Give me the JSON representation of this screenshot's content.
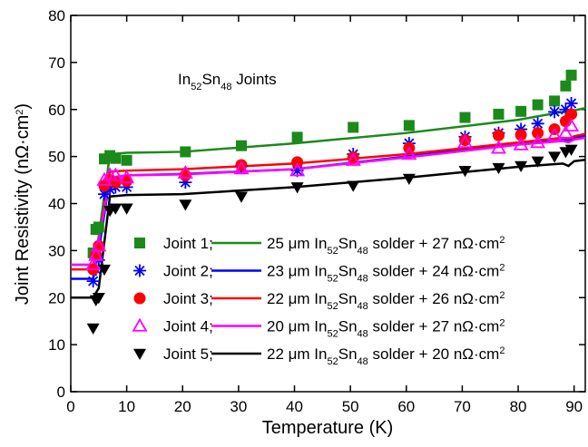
{
  "chart_data": {
    "type": "scatter",
    "x_label": "Temperature (K)",
    "y_label": [
      "Joint Resistivity (nΩ·cm",
      "2",
      ")"
    ],
    "annotation": [
      "In",
      "52",
      "Sn",
      "48",
      " Joints"
    ],
    "xlim": [
      0,
      92
    ],
    "xticks": [
      0,
      10,
      20,
      30,
      40,
      50,
      60,
      70,
      80,
      90
    ],
    "ylim": [
      0,
      80
    ],
    "yticks": [
      0,
      10,
      20,
      30,
      40,
      50,
      60,
      70,
      80
    ],
    "series": [
      {
        "name": "Joint 1;",
        "color": "#1b8a1b",
        "marker": "square",
        "x": [
          4,
          4.5,
          5,
          6,
          7,
          8,
          10,
          20.5,
          30.5,
          40.5,
          50.5,
          60.5,
          70.5,
          76.5,
          80.5,
          83.5,
          86.5,
          88.5,
          89.5
        ],
        "values": [
          29.5,
          34.5,
          35,
          49.5,
          50.2,
          49.6,
          49.2,
          51,
          52.3,
          54.1,
          56.2,
          56.6,
          58.3,
          59,
          59.6,
          61,
          61.8,
          65,
          67.3
        ]
      },
      {
        "name": [
          "25 μm In",
          "52",
          "Sn",
          "48",
          " solder + 27 nΩ·cm",
          "2"
        ],
        "color": "#1b8a1b",
        "mode": "line",
        "x": [
          0,
          4,
          5,
          7,
          10,
          20,
          40,
          60,
          80,
          88,
          89,
          90,
          92
        ],
        "values": [
          27,
          27,
          33,
          50.5,
          50.8,
          51,
          52.8,
          55,
          57.8,
          59.5,
          59.5,
          59.8,
          60.3
        ]
      },
      {
        "name": "Joint 2;",
        "color": "#0000ff",
        "marker": "star",
        "x": [
          4,
          4.5,
          5,
          6,
          7,
          8,
          10,
          20.5,
          30.5,
          40.5,
          50.5,
          60.5,
          70.5,
          76.5,
          80.5,
          83.5,
          86.5,
          88.5,
          89.5
        ],
        "values": [
          23.5,
          26,
          28,
          42,
          43,
          43.5,
          43.5,
          44.5,
          48,
          47,
          50.5,
          52.8,
          54.2,
          55,
          55.8,
          57,
          59.5,
          60,
          61.3
        ]
      },
      {
        "name": [
          "23 μm In",
          "52",
          "Sn",
          "48",
          " solder + 24 nΩ·cm",
          "2"
        ],
        "color": "#0000ff",
        "mode": "line",
        "x": [
          0,
          4,
          5,
          7,
          10,
          20,
          40,
          60,
          80,
          88,
          89,
          90,
          92
        ],
        "values": [
          24,
          24,
          30,
          45.5,
          46,
          46.3,
          47.3,
          50,
          52.7,
          53.5,
          53.3,
          54,
          54.5
        ]
      },
      {
        "name": "Joint 3;",
        "color": "#ff0000",
        "marker": "circle",
        "x": [
          4,
          4.5,
          5,
          6,
          7,
          8,
          10,
          20.5,
          30.5,
          40.5,
          50.5,
          60.5,
          70.5,
          76.5,
          80.5,
          83.5,
          86.5,
          88.5,
          89.5
        ],
        "values": [
          26,
          29,
          31,
          43.8,
          45,
          44.5,
          44.8,
          46,
          48.2,
          48.8,
          49.8,
          51.8,
          53.5,
          54.5,
          54.6,
          55,
          55.8,
          57.5,
          59
        ]
      },
      {
        "name": [
          "22 μm In",
          "52",
          "Sn",
          "48",
          " solder + 26 nΩ·cm",
          "2"
        ],
        "color": "#ff0000",
        "mode": "line",
        "x": [
          0,
          4,
          5,
          7,
          10,
          20,
          40,
          60,
          80,
          88,
          89,
          90,
          92
        ],
        "values": [
          26,
          26,
          32,
          46.8,
          47,
          47.3,
          48.5,
          50.5,
          53,
          54,
          53.8,
          54.3,
          54.8
        ]
      },
      {
        "name": "Joint 4;",
        "color": "#ff00ff",
        "marker": "triangle-up",
        "x": [
          4,
          4.5,
          5,
          6,
          7,
          8,
          10,
          20.5,
          30.5,
          40.5,
          50.5,
          60.5,
          70.5,
          76.5,
          80.5,
          83.5,
          86.5,
          88.5,
          89.5
        ],
        "values": [
          27,
          29,
          31,
          45,
          46,
          46,
          45.5,
          46.5,
          47.4,
          47,
          49.2,
          50.5,
          53,
          51.8,
          52.5,
          53,
          54.5,
          55,
          56.5
        ]
      },
      {
        "name": [
          "20 μm In",
          "52",
          "Sn",
          "48",
          " solder + 27 nΩ·cm",
          "2"
        ],
        "color": "#ff00ff",
        "mode": "line",
        "x": [
          0,
          4,
          5,
          7,
          10,
          20,
          40,
          60,
          80,
          88,
          89,
          90,
          92
        ],
        "values": [
          27,
          27,
          32,
          45.5,
          46,
          46.2,
          47.3,
          49.8,
          52.5,
          53.3,
          53,
          53.6,
          54
        ]
      },
      {
        "name": "Joint 5;",
        "color": "#000000",
        "marker": "triangle-down",
        "x": [
          4,
          4.5,
          5,
          6,
          7,
          8,
          10,
          20.5,
          30.5,
          40.5,
          50.5,
          60.5,
          70.5,
          76.5,
          80.5,
          83.5,
          86.5,
          88.5,
          89.5
        ],
        "values": [
          13.5,
          19.5,
          20,
          26,
          38.5,
          39,
          39,
          39.8,
          41.5,
          43.5,
          43.8,
          45.3,
          47,
          47.6,
          48,
          49,
          50,
          51,
          51.5
        ]
      },
      {
        "name": [
          "22 μm In",
          "52",
          "Sn",
          "48",
          " solder + 20 nΩ·cm",
          "2"
        ],
        "color": "#000000",
        "mode": "line",
        "x": [
          0,
          4,
          5,
          7,
          10,
          20,
          40,
          60,
          80,
          88,
          89,
          90,
          92
        ],
        "values": [
          20,
          20,
          22,
          41.5,
          41.8,
          42,
          43.5,
          45.5,
          47.8,
          48.5,
          48,
          49,
          49.3
        ]
      }
    ]
  }
}
